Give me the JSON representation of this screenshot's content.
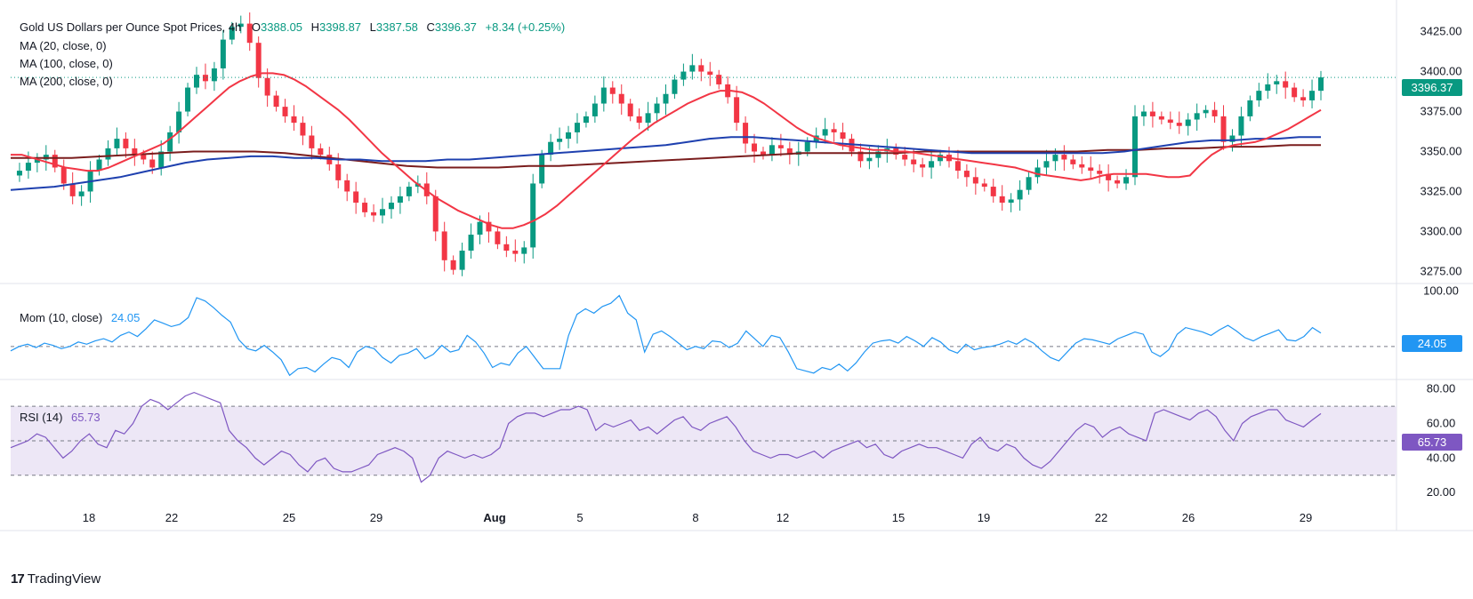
{
  "header": {
    "title": "Gold US Dollars per Ounce Spot Prices, 4h",
    "open_label": "O",
    "open": "3388.05",
    "high_label": "H",
    "high": "3398.87",
    "low_label": "L",
    "low": "3387.58",
    "close_label": "C",
    "close": "3396.37",
    "change": "+8.34 (+0.25%)",
    "ma": [
      "MA (20, close, 0)",
      "MA (100, close, 0)",
      "MA (200, close, 0)"
    ]
  },
  "momentum": {
    "label": "Mom (10, close)",
    "value": "24.05"
  },
  "rsi": {
    "label": "RSI (14)",
    "value": "65.73"
  },
  "brand": {
    "name": "TradingView",
    "logo_text": "17"
  },
  "colors": {
    "up": "#089981",
    "down": "#f23645",
    "ma20": "#f23645",
    "ma100": "#1e40af",
    "ma200": "#7a1d1d",
    "mom": "#2196f3",
    "rsi": "#7e57c2",
    "rsi_band": "#ede7f6"
  },
  "chart_data": [
    {
      "type": "candlestick",
      "title": "Gold US Dollars per Ounce Spot Prices, 4h",
      "x_ticks": [
        "18",
        "22",
        "25",
        "29",
        "Aug",
        "5",
        "8",
        "12",
        "15",
        "19",
        "22",
        "26",
        "29"
      ],
      "y_ticks": [
        3275,
        3300,
        3325,
        3350,
        3375,
        3400,
        3425
      ],
      "ylim": [
        3268,
        3437
      ],
      "last_price": 3396.37,
      "close_path": [
        3335,
        3338,
        3343,
        3345,
        3348,
        3340,
        3330,
        3322,
        3325,
        3338,
        3345,
        3352,
        3358,
        3352,
        3348,
        3345,
        3340,
        3350,
        3362,
        3375,
        3390,
        3398,
        3394,
        3402,
        3420,
        3428,
        3430,
        3418,
        3396,
        3385,
        3378,
        3372,
        3368,
        3360,
        3352,
        3348,
        3342,
        3332,
        3325,
        3318,
        3312,
        3310,
        3314,
        3318,
        3322,
        3328,
        3330,
        3322,
        3300,
        3282,
        3276,
        3288,
        3298,
        3306,
        3300,
        3292,
        3288,
        3286,
        3290,
        3330,
        3348,
        3356,
        3358,
        3362,
        3368,
        3372,
        3380,
        3390,
        3386,
        3380,
        3372,
        3368,
        3374,
        3380,
        3386,
        3395,
        3400,
        3404,
        3400,
        3398,
        3392,
        3384,
        3368,
        3355,
        3350,
        3348,
        3354,
        3352,
        3348,
        3350,
        3356,
        3360,
        3364,
        3362,
        3358,
        3350,
        3344,
        3346,
        3350,
        3352,
        3348,
        3345,
        3342,
        3340,
        3344,
        3348,
        3344,
        3338,
        3334,
        3330,
        3328,
        3322,
        3318,
        3320,
        3326,
        3334,
        3340,
        3344,
        3348,
        3345,
        3342,
        3340,
        3338,
        3336,
        3332,
        3330,
        3334,
        3372,
        3375,
        3372,
        3370,
        3368,
        3366,
        3370,
        3374,
        3376,
        3372,
        3356,
        3360,
        3372,
        3382,
        3388,
        3392,
        3394,
        3390,
        3384,
        3382,
        3388,
        3396.37
      ],
      "ma20": [
        3348,
        3348,
        3346,
        3344,
        3342,
        3340,
        3339,
        3338,
        3338,
        3340,
        3343,
        3346,
        3349,
        3352,
        3355,
        3360,
        3366,
        3372,
        3378,
        3384,
        3390,
        3394,
        3397,
        3399,
        3399,
        3398,
        3395,
        3391,
        3386,
        3381,
        3376,
        3370,
        3363,
        3356,
        3349,
        3343,
        3337,
        3331,
        3326,
        3321,
        3317,
        3313,
        3310,
        3307,
        3304,
        3302,
        3302,
        3304,
        3307,
        3311,
        3316,
        3322,
        3328,
        3334,
        3340,
        3346,
        3352,
        3358,
        3363,
        3368,
        3372,
        3376,
        3380,
        3383,
        3386,
        3388,
        3388,
        3387,
        3384,
        3380,
        3375,
        3370,
        3365,
        3361,
        3358,
        3356,
        3354,
        3353,
        3352,
        3351,
        3351,
        3350,
        3350,
        3349,
        3348,
        3347,
        3346,
        3345,
        3344,
        3343,
        3342,
        3341,
        3340,
        3338,
        3336,
        3335,
        3334,
        3333,
        3332,
        3333,
        3335,
        3336,
        3336,
        3336,
        3336,
        3335,
        3334,
        3334,
        3335,
        3342,
        3348,
        3352,
        3354,
        3355,
        3356,
        3358,
        3361,
        3364,
        3368,
        3372,
        3376
      ],
      "ma100": [
        3326,
        3327,
        3328,
        3330,
        3332,
        3334,
        3337,
        3340,
        3343,
        3345,
        3346,
        3347,
        3347,
        3346,
        3346,
        3345,
        3345,
        3344,
        3344,
        3344,
        3345,
        3345,
        3346,
        3347,
        3348,
        3349,
        3350,
        3351,
        3352,
        3353,
        3354,
        3356,
        3358,
        3359,
        3359,
        3358,
        3357,
        3356,
        3355,
        3354,
        3353,
        3352,
        3351,
        3350,
        3349,
        3349,
        3349,
        3349,
        3349,
        3349,
        3349,
        3350,
        3352,
        3354,
        3356,
        3357,
        3357,
        3358,
        3358,
        3359,
        3359
      ],
      "ma200": [
        3346,
        3346,
        3346,
        3347,
        3348,
        3349,
        3350,
        3350,
        3350,
        3349,
        3347,
        3345,
        3343,
        3341,
        3340,
        3340,
        3340,
        3341,
        3341,
        3342,
        3343,
        3344,
        3345,
        3346,
        3347,
        3348,
        3349,
        3349,
        3349,
        3349,
        3350,
        3350,
        3350,
        3350,
        3350,
        3350,
        3351,
        3351,
        3352,
        3352,
        3353,
        3353,
        3354,
        3354
      ]
    },
    {
      "type": "line",
      "title": "Mom (10, close)",
      "y_ticks": [
        0,
        100
      ],
      "ylim": [
        -58,
        112
      ],
      "last_value": 24.05,
      "values": [
        -8,
        0,
        4,
        -2,
        6,
        2,
        -4,
        0,
        8,
        4,
        10,
        14,
        8,
        20,
        26,
        18,
        32,
        48,
        42,
        36,
        40,
        52,
        88,
        82,
        70,
        56,
        44,
        12,
        -4,
        -8,
        2,
        -10,
        -24,
        -52,
        -40,
        -38,
        -46,
        -32,
        -20,
        -24,
        -38,
        -10,
        0,
        -4,
        -20,
        -30,
        -16,
        -12,
        -4,
        -22,
        -14,
        2,
        -10,
        -6,
        20,
        8,
        -12,
        -38,
        -30,
        -34,
        -12,
        0,
        -20,
        -40,
        -40,
        -40,
        20,
        58,
        68,
        60,
        72,
        78,
        92,
        60,
        48,
        -10,
        22,
        28,
        18,
        6,
        -6,
        0,
        -4,
        10,
        8,
        -2,
        6,
        28,
        14,
        0,
        20,
        16,
        -10,
        -40,
        -44,
        -48,
        -38,
        -42,
        -32,
        -44,
        -30,
        -10,
        6,
        10,
        12,
        6,
        18,
        10,
        0,
        16,
        8,
        -6,
        -12,
        4,
        -6,
        -2,
        0,
        4,
        10,
        4,
        14,
        6,
        -8,
        -20,
        -26,
        -10,
        6,
        14,
        12,
        8,
        4,
        14,
        20,
        26,
        22,
        -10,
        -18,
        -6,
        22,
        34,
        30,
        26,
        20,
        30,
        38,
        28,
        16,
        10,
        18,
        24,
        30,
        12,
        10,
        18,
        34,
        24.05
      ]
    },
    {
      "type": "line",
      "title": "RSI (14)",
      "y_ticks": [
        20,
        40,
        60,
        80
      ],
      "ylim": [
        17,
        85
      ],
      "band": [
        30,
        70
      ],
      "mid": 50,
      "last_value": 65.73,
      "values": [
        46,
        48,
        50,
        54,
        52,
        46,
        40,
        44,
        50,
        54,
        48,
        46,
        56,
        54,
        60,
        70,
        74,
        72,
        68,
        72,
        76,
        78,
        76,
        74,
        72,
        56,
        50,
        46,
        40,
        36,
        40,
        44,
        42,
        36,
        32,
        38,
        40,
        34,
        32,
        32,
        34,
        36,
        42,
        44,
        46,
        44,
        40,
        26,
        30,
        40,
        44,
        42,
        40,
        42,
        40,
        42,
        46,
        60,
        64,
        66,
        66,
        64,
        66,
        68,
        68,
        70,
        68,
        56,
        60,
        58,
        60,
        62,
        56,
        58,
        54,
        58,
        62,
        64,
        58,
        56,
        60,
        62,
        64,
        58,
        50,
        44,
        42,
        40,
        42,
        42,
        40,
        42,
        44,
        40,
        44,
        46,
        48,
        50,
        46,
        48,
        42,
        40,
        44,
        46,
        48,
        46,
        46,
        44,
        42,
        40,
        48,
        52,
        46,
        44,
        48,
        46,
        40,
        36,
        34,
        38,
        44,
        50,
        56,
        60,
        58,
        52,
        56,
        58,
        54,
        52,
        50,
        66,
        68,
        66,
        64,
        62,
        66,
        68,
        64,
        56,
        50,
        60,
        64,
        66,
        68,
        68,
        62,
        60,
        58,
        62,
        65.73
      ]
    }
  ]
}
